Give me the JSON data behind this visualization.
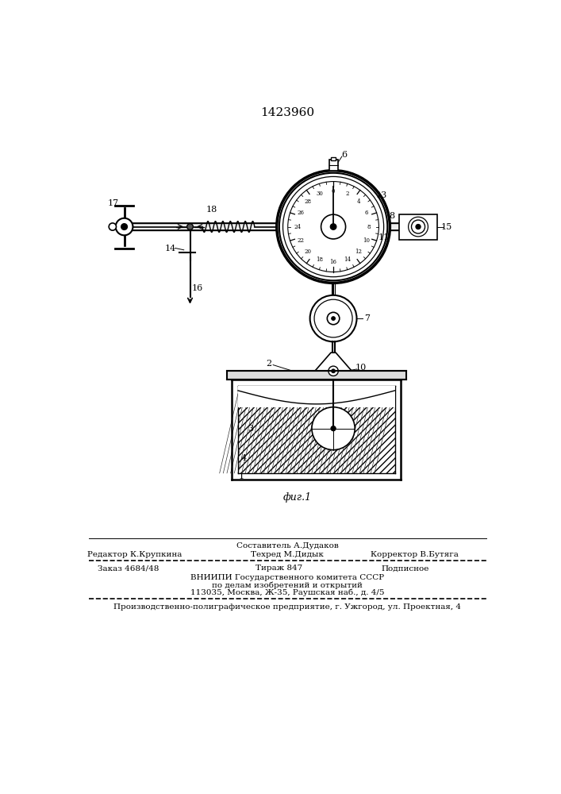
{
  "patent_number": "1423960",
  "fig_label": "фиг.1",
  "background_color": "#ffffff",
  "line_color": "#000000",
  "footer": {
    "sestavitel": "Составитель А.Дудаков",
    "redaktor": "Редактор К.Крупкина",
    "tehred": "Техред М.Дидык",
    "korrektor": "Корректор В.Бутяга",
    "zakaz": "Заказ 4684/48",
    "tirazh": "Тираж 847",
    "podpisnoe": "Подписное",
    "vniipи": "ВНИИПИ Государственного комитета СССР",
    "vniipи2": "по делам изобретений и открытий",
    "vniipи3": "113035, Москва, Ж-35, Раушская наб., д. 4/5",
    "proizv": "Производственно-полиграфическое предприятие, г. Ужгород, ул. Проектная, 4"
  }
}
